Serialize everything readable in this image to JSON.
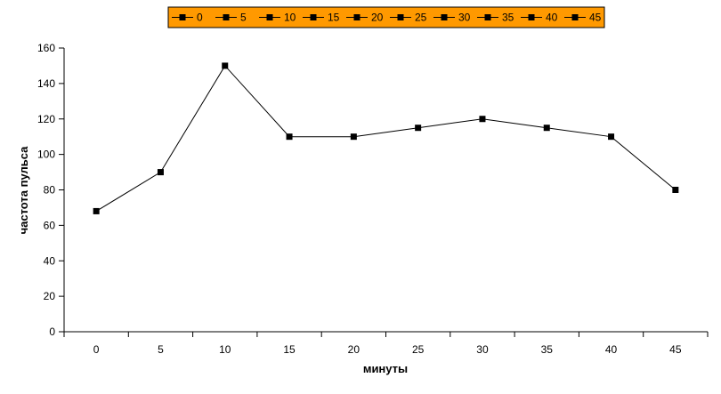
{
  "chart_data": {
    "type": "line",
    "title": "",
    "xlabel": "минуты",
    "ylabel": "частота пульса",
    "categories": [
      "0",
      "5",
      "10",
      "15",
      "20",
      "25",
      "30",
      "35",
      "40",
      "45"
    ],
    "values": [
      68,
      90,
      150,
      110,
      110,
      115,
      120,
      115,
      110,
      80
    ],
    "ylim": [
      0,
      160
    ],
    "yticks": [
      0,
      20,
      40,
      60,
      80,
      100,
      120,
      140,
      160
    ],
    "grid": false,
    "legend": {
      "placement": "top",
      "entries": [
        "0",
        "5",
        "10",
        "15",
        "20",
        "25",
        "30",
        "35",
        "40",
        "45"
      ],
      "background": "#ff9900"
    },
    "colors": {
      "line": "#000000",
      "marker": "#000000",
      "axis": "#000000"
    }
  }
}
